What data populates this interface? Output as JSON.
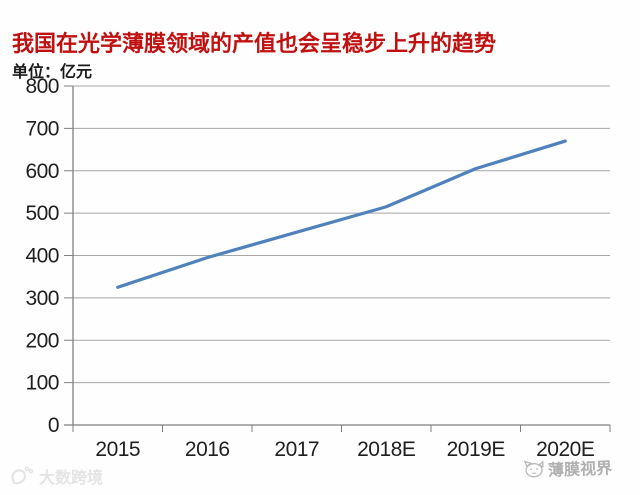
{
  "chart_data": {
    "type": "line",
    "title": "我国在光学薄膜领域的产值也会呈稳步上升的趋势",
    "title_color": "#c01010",
    "unit_label": "单位：亿元",
    "categories": [
      "2015",
      "2016",
      "2017",
      "2018E",
      "2019E",
      "2020E"
    ],
    "values": [
      325,
      395,
      455,
      515,
      605,
      670
    ],
    "ylim": [
      0,
      800
    ],
    "ytick_step": 100,
    "yticks": [
      "0",
      "100",
      "200",
      "300",
      "400",
      "500",
      "600",
      "700",
      "800"
    ],
    "line_color": "#4f81bd",
    "gridline_color": "#a6a6a6",
    "axis_color": "#808080",
    "grid": true,
    "legend_position": "none",
    "xlabel": "",
    "ylabel": ""
  },
  "watermarks": {
    "left_text": "大数跨境",
    "right_text": "薄膜视界"
  }
}
